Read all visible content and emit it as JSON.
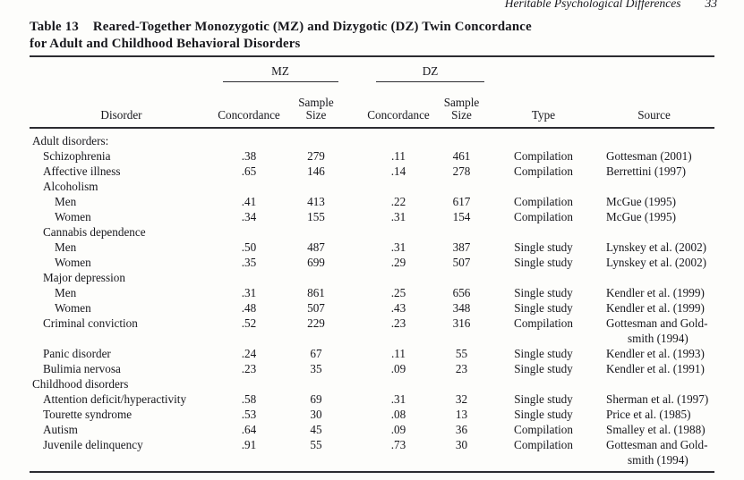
{
  "page": {
    "running_head": "Heritable Psychological Differences",
    "page_number": "33"
  },
  "table": {
    "label": "Table 13",
    "title_line1": "Reared-Together Monozygotic (MZ) and Dizygotic (DZ) Twin Concordance",
    "title_line2": "for Adult and Childhood Behavioral Disorders",
    "group_headers": {
      "mz": "MZ",
      "dz": "DZ"
    },
    "columns": {
      "disorder": "Disorder",
      "concordance": "Concordance",
      "sample": "Sample",
      "size": "Size",
      "type": "Type",
      "source": "Source"
    },
    "rows": [
      {
        "kind": "section",
        "indent": 0,
        "label": "Adult disorders:"
      },
      {
        "kind": "data",
        "indent": 1,
        "label": "Schizophrenia",
        "mz_c": ".38",
        "mz_n": "279",
        "dz_c": ".11",
        "dz_n": "461",
        "study_type": "Compilation",
        "source": [
          "Gottesman (2001)"
        ]
      },
      {
        "kind": "data",
        "indent": 1,
        "label": "Affective illness",
        "mz_c": ".65",
        "mz_n": "146",
        "dz_c": ".14",
        "dz_n": "278",
        "study_type": "Compilation",
        "source": [
          "Berrettini (1997)"
        ]
      },
      {
        "kind": "group",
        "indent": 1,
        "label": "Alcoholism"
      },
      {
        "kind": "data",
        "indent": 2,
        "label": "Men",
        "mz_c": ".41",
        "mz_n": "413",
        "dz_c": ".22",
        "dz_n": "617",
        "study_type": "Compilation",
        "source": [
          "McGue (1995)"
        ]
      },
      {
        "kind": "data",
        "indent": 2,
        "label": "Women",
        "mz_c": ".34",
        "mz_n": "155",
        "dz_c": ".31",
        "dz_n": "154",
        "study_type": "Compilation",
        "source": [
          "McGue (1995)"
        ]
      },
      {
        "kind": "group",
        "indent": 1,
        "label": "Cannabis dependence"
      },
      {
        "kind": "data",
        "indent": 2,
        "label": "Men",
        "mz_c": ".50",
        "mz_n": "487",
        "dz_c": ".31",
        "dz_n": "387",
        "study_type": "Single study",
        "source": [
          "Lynskey et al. (2002)"
        ]
      },
      {
        "kind": "data",
        "indent": 2,
        "label": "Women",
        "mz_c": ".35",
        "mz_n": "699",
        "dz_c": ".29",
        "dz_n": "507",
        "study_type": "Single study",
        "source": [
          "Lynskey et al. (2002)"
        ]
      },
      {
        "kind": "group",
        "indent": 1,
        "label": "Major depression"
      },
      {
        "kind": "data",
        "indent": 2,
        "label": "Men",
        "mz_c": ".31",
        "mz_n": "861",
        "dz_c": ".25",
        "dz_n": "656",
        "study_type": "Single study",
        "source": [
          "Kendler et al. (1999)"
        ]
      },
      {
        "kind": "data",
        "indent": 2,
        "label": "Women",
        "mz_c": ".48",
        "mz_n": "507",
        "dz_c": ".43",
        "dz_n": "348",
        "study_type": "Single study",
        "source": [
          "Kendler et al. (1999)"
        ]
      },
      {
        "kind": "data",
        "indent": 1,
        "label": "Criminal conviction",
        "mz_c": ".52",
        "mz_n": "229",
        "dz_c": ".23",
        "dz_n": "316",
        "study_type": "Compilation",
        "source": [
          "Gottesman and Gold-",
          "smith (1994)"
        ]
      },
      {
        "kind": "data",
        "indent": 1,
        "label": "Panic disorder",
        "mz_c": ".24",
        "mz_n": "67",
        "dz_c": ".11",
        "dz_n": "55",
        "study_type": "Single study",
        "source": [
          "Kendler et al. (1993)"
        ]
      },
      {
        "kind": "data",
        "indent": 1,
        "label": "Bulimia nervosa",
        "mz_c": ".23",
        "mz_n": "35",
        "dz_c": ".09",
        "dz_n": "23",
        "study_type": "Single study",
        "source": [
          "Kendler et al. (1991)"
        ]
      },
      {
        "kind": "section",
        "indent": 0,
        "label": "Childhood disorders"
      },
      {
        "kind": "data",
        "indent": 1,
        "label": "Attention deficit/hyperactivity",
        "mz_c": ".58",
        "mz_n": "69",
        "dz_c": ".31",
        "dz_n": "32",
        "study_type": "Single study",
        "source": [
          "Sherman et al. (1997)"
        ]
      },
      {
        "kind": "data",
        "indent": 1,
        "label": "Tourette syndrome",
        "mz_c": ".53",
        "mz_n": "30",
        "dz_c": ".08",
        "dz_n": "13",
        "study_type": "Single study",
        "source": [
          "Price et al. (1985)"
        ]
      },
      {
        "kind": "data",
        "indent": 1,
        "label": "Autism",
        "mz_c": ".64",
        "mz_n": "45",
        "dz_c": ".09",
        "dz_n": "36",
        "study_type": "Compilation",
        "source": [
          "Smalley et al. (1988)"
        ]
      },
      {
        "kind": "data",
        "indent": 1,
        "label": "Juvenile delinquency",
        "mz_c": ".91",
        "mz_n": "55",
        "dz_c": ".73",
        "dz_n": "30",
        "study_type": "Compilation",
        "source": [
          "Gottesman and Gold-",
          "smith (1994)"
        ]
      }
    ]
  }
}
